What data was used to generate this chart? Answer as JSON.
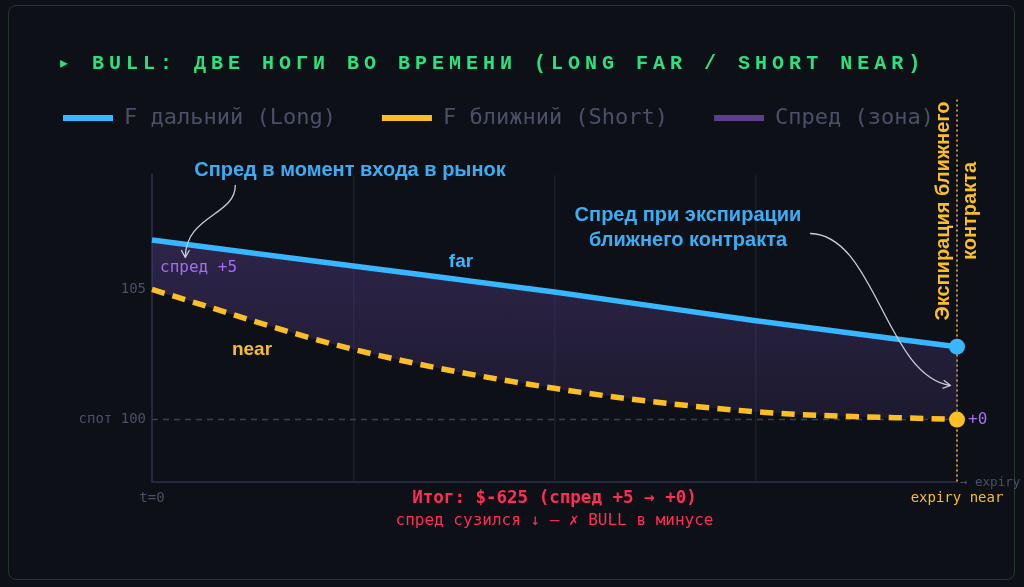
{
  "chart_data": {
    "type": "line",
    "title": "▸ BULL: ДВЕ НОГИ ВО ВРЕМЕНИ (LONG FAR / SHORT NEAR)",
    "xlabel": "→ expiry",
    "categories": [
      "t=0",
      null,
      null,
      null,
      "expiry near"
    ],
    "series": [
      {
        "name": "F дальний (Long)",
        "type": "line",
        "color": "#38b6ff",
        "values": [
          106.9,
          105.9,
          104.9,
          103.8,
          102.8
        ],
        "line_style": "solid"
      },
      {
        "name": "F ближний (Short)",
        "type": "line",
        "color": "#fbbf24",
        "values": [
          105,
          102.7,
          101.2,
          100.3,
          100
        ],
        "line_style": "dashed"
      },
      {
        "name": "Спред (зона)",
        "type": "area",
        "color": "#5b3f8e",
        "values": [
          null,
          null,
          null,
          null,
          null
        ],
        "lower": [
          105,
          102.7,
          101.2,
          100.3,
          100
        ],
        "upper": [
          106.9,
          105.9,
          104.9,
          103.8,
          102.8
        ]
      },
      {
        "type": "scatter",
        "color": "#38b6ff",
        "values": [
          null,
          null,
          null,
          null,
          102.8
        ],
        "marker": "circle"
      },
      {
        "type": "scatter",
        "color": "#fbbf24",
        "values": [
          null,
          null,
          null,
          null,
          100
        ],
        "marker": "circle"
      }
    ],
    "ylim": [
      97.6,
      109.4
    ],
    "yticks": [
      100,
      105
    ],
    "grid": "x",
    "legend": "top left",
    "ref_lines": [
      {
        "axis": "y",
        "value": 100,
        "label": "спот",
        "color": "#3a4058",
        "line_style": "dashed"
      },
      {
        "axis": "x",
        "value": "expiry near",
        "label": "Экспирация ближнего контракта",
        "color": "#fbbf24",
        "line_style": "dotted"
      }
    ],
    "annotations": [
      "Спред в момент входа в рынок",
      "Спред при экспирации ближнего контракта",
      "спред +5",
      "far",
      "near",
      "+0",
      "Итог: $-625 (спред +5 → +0)",
      "спред сузился ↓ — ✗ BULL в минусе"
    ]
  }
}
